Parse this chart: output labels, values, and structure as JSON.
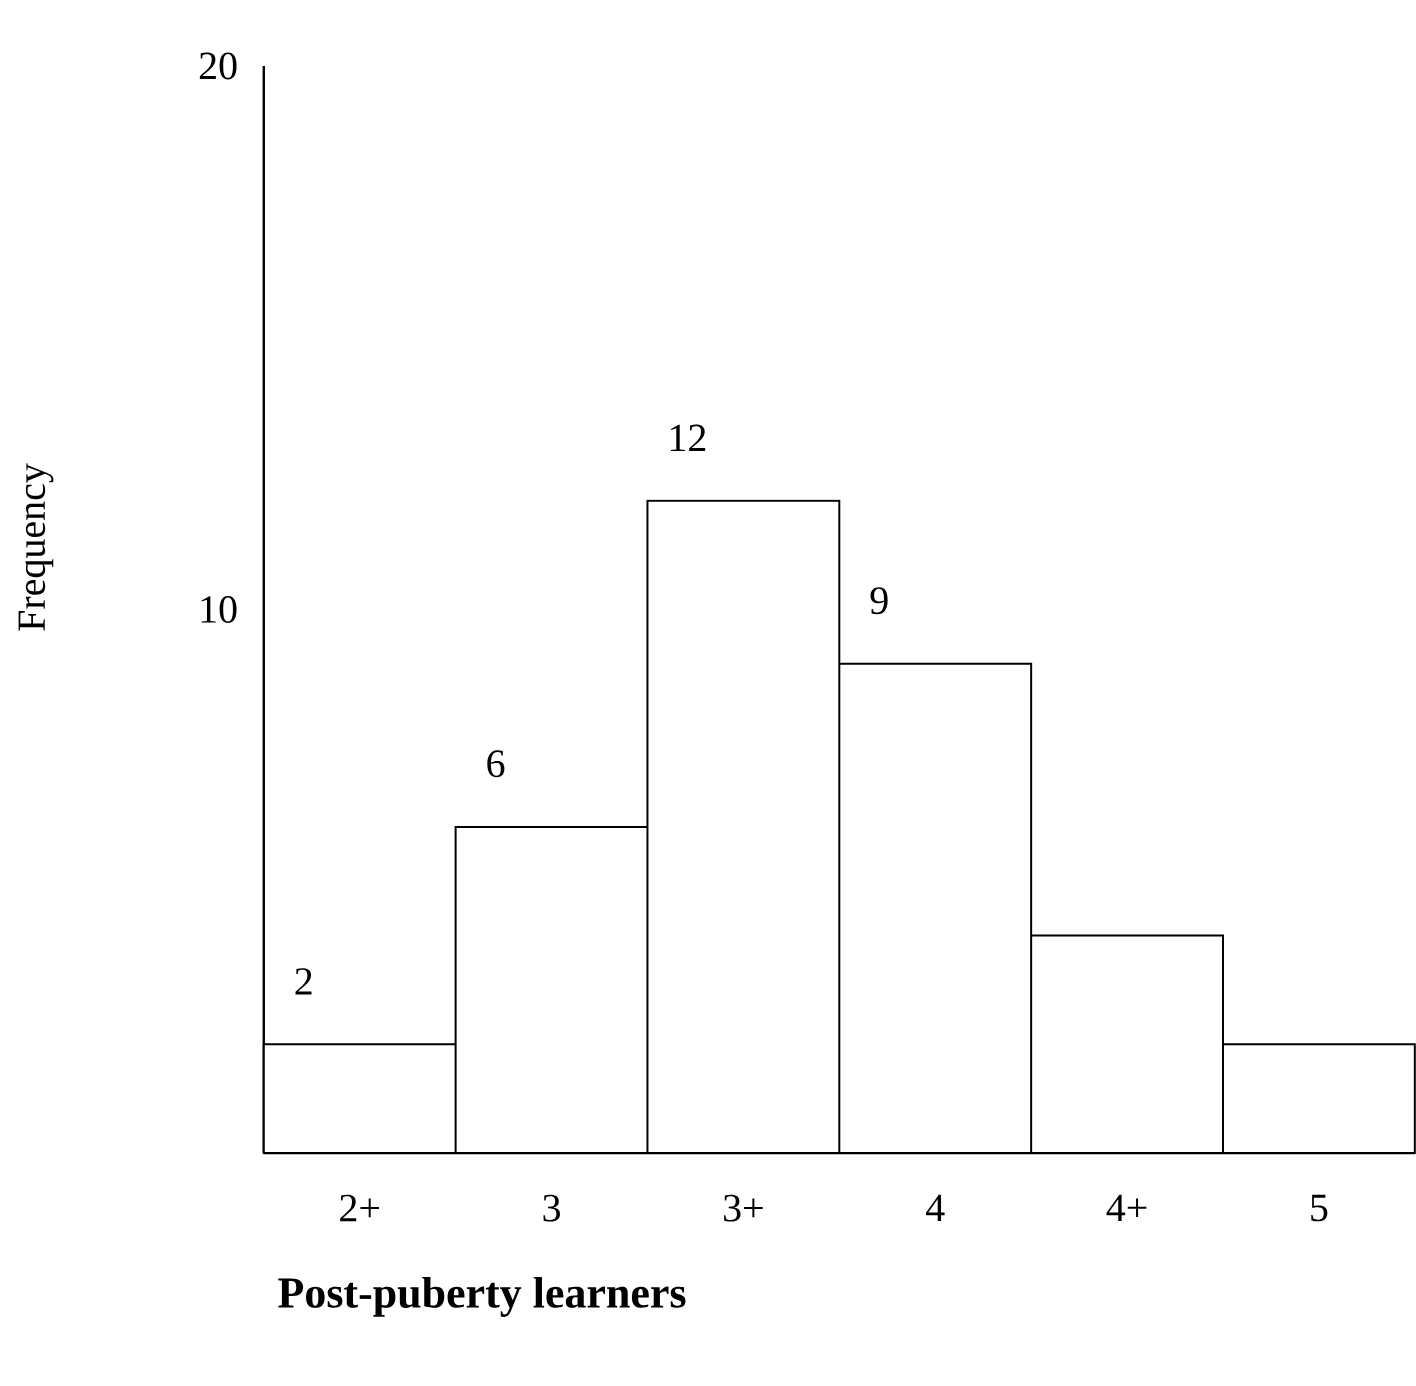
{
  "chart_data": {
    "type": "bar",
    "xlabel": "**Post-puberty learners**",
    "ylabel": "Frequency",
    "categories": [
      "2+",
      "3",
      "3+",
      "4",
      "4+",
      "5"
    ],
    "values": [
      2,
      6,
      12,
      9,
      4,
      2
    ],
    "value_labels": [
      "2",
      "6",
      "12",
      "9",
      null,
      null
    ],
    "color": "#ffffff",
    "ylim": [
      0,
      20
    ],
    "yticks": [
      10,
      20
    ],
    "grid": false
  }
}
